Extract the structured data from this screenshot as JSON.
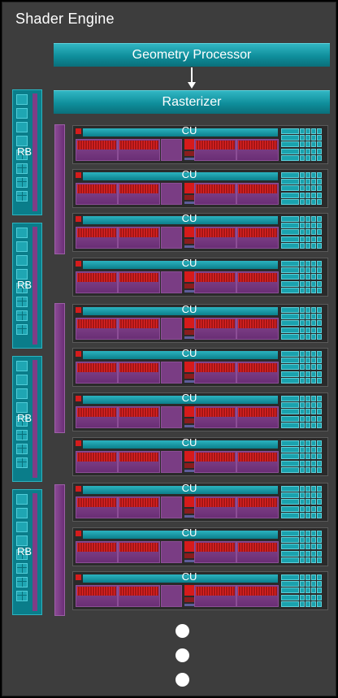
{
  "engine": {
    "title": "Shader Engine"
  },
  "geometry_processor": {
    "label": "Geometry Processor"
  },
  "rasterizer": {
    "label": "Rasterizer"
  },
  "render_backends": [
    {
      "label": "RB"
    },
    {
      "label": "RB"
    },
    {
      "label": "RB"
    },
    {
      "label": "RB"
    }
  ],
  "compute_units": [
    {
      "label": "CU"
    },
    {
      "label": "CU"
    },
    {
      "label": "CU"
    },
    {
      "label": "CU"
    },
    {
      "label": "CU"
    },
    {
      "label": "CU"
    },
    {
      "label": "CU"
    },
    {
      "label": "CU"
    },
    {
      "label": "CU"
    },
    {
      "label": "CU"
    },
    {
      "label": "CU"
    }
  ],
  "colors": {
    "background": "#3d3d3d",
    "teal": "#0f8e9b",
    "purple": "#7a3d84",
    "red": "#d41c1c"
  },
  "continuation": {
    "dots": 3
  }
}
